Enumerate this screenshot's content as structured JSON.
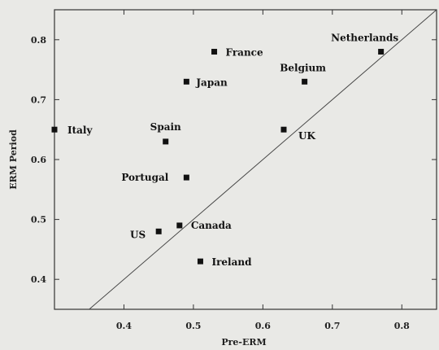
{
  "chart_data": {
    "type": "scatter",
    "title": "",
    "xlabel": "Pre-ERM",
    "ylabel": "ERM Period",
    "xlim": [
      0.3,
      0.85
    ],
    "ylim": [
      0.35,
      0.85
    ],
    "x_ticks": [
      "0.4",
      "0.5",
      "0.6",
      "0.7",
      "0.8"
    ],
    "y_ticks": [
      "0.4",
      "0.5",
      "0.6",
      "0.7",
      "0.8"
    ],
    "x_tick_values": [
      0.4,
      0.5,
      0.6,
      0.7,
      0.8
    ],
    "y_tick_values": [
      0.4,
      0.5,
      0.6,
      0.7,
      0.8
    ],
    "reference_line": "45-degree",
    "grid": false,
    "points": [
      {
        "label": "Italy",
        "x": 0.3,
        "y": 0.65
      },
      {
        "label": "France",
        "x": 0.53,
        "y": 0.78
      },
      {
        "label": "Japan",
        "x": 0.49,
        "y": 0.73
      },
      {
        "label": "Spain",
        "x": 0.46,
        "y": 0.63
      },
      {
        "label": "Portugal",
        "x": 0.49,
        "y": 0.57
      },
      {
        "label": "US",
        "x": 0.45,
        "y": 0.48
      },
      {
        "label": "Canada",
        "x": 0.48,
        "y": 0.49
      },
      {
        "label": "Ireland",
        "x": 0.51,
        "y": 0.43
      },
      {
        "label": "UK",
        "x": 0.63,
        "y": 0.65
      },
      {
        "label": "Belgium",
        "x": 0.66,
        "y": 0.73
      },
      {
        "label": "Netherlands",
        "x": 0.77,
        "y": 0.78
      }
    ]
  }
}
